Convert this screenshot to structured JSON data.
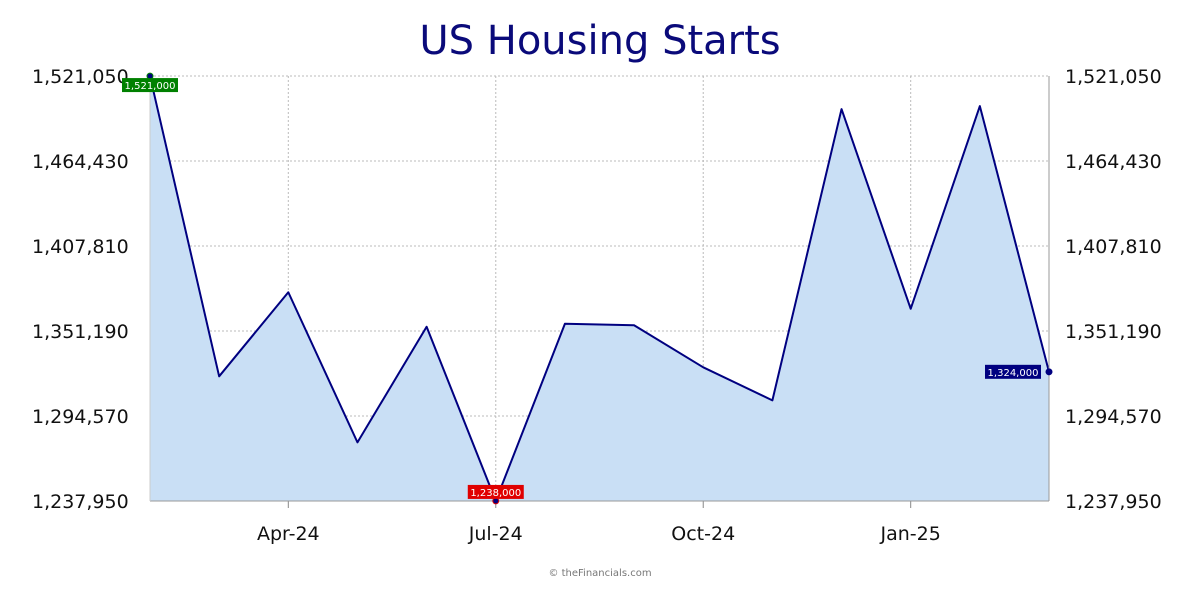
{
  "chart_data": {
    "type": "area",
    "title": "US Housing Starts",
    "xlabel": "",
    "ylabel": "",
    "ylim": [
      1237950,
      1521050
    ],
    "yticks": [
      1521050,
      1464430,
      1407810,
      1351190,
      1294570,
      1237950
    ],
    "ytick_labels": [
      "1,521,050",
      "1,464,430",
      "1,407,810",
      "1,351,190",
      "1,294,570",
      "1,237,950"
    ],
    "x": [
      "2024-02",
      "2024-03",
      "2024-04",
      "2024-05",
      "2024-06",
      "2024-07",
      "2024-08",
      "2024-09",
      "2024-10",
      "2024-11",
      "2024-12",
      "2025-01",
      "2025-02",
      "2025-03"
    ],
    "xtick_labels": [
      {
        "at": "2024-04",
        "label": "Apr-24"
      },
      {
        "at": "2024-07",
        "label": "Jul-24"
      },
      {
        "at": "2024-10",
        "label": "Oct-24"
      },
      {
        "at": "2025-01",
        "label": "Jan-25"
      }
    ],
    "series": [
      {
        "values": [
          1521000,
          1321000,
          1377000,
          1277000,
          1354000,
          1238000,
          1356000,
          1355000,
          1327000,
          1305000,
          1499000,
          1366000,
          1501000,
          1324000
        ]
      }
    ],
    "annotations": [
      {
        "x": "2024-02",
        "label": "1,521,000",
        "kind": "max",
        "color": "#008000"
      },
      {
        "x": "2024-07",
        "label": "1,238,000",
        "kind": "min",
        "color": "#e00000"
      },
      {
        "x": "2025-03",
        "label": "1,324,000",
        "kind": "last",
        "color": "#000080"
      }
    ],
    "grid": true,
    "colors": {
      "line": "#000080",
      "fill": "#c9dff5",
      "grid": "#bbbbbb"
    }
  },
  "footer": "© theFinancials.com"
}
